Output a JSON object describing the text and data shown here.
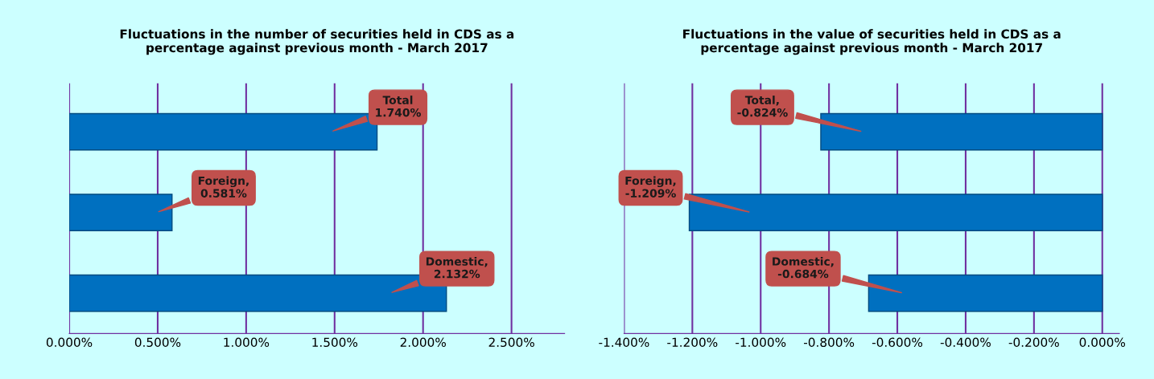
{
  "chart_data": [
    {
      "type": "bar",
      "orientation": "horizontal",
      "title": "Fluctuations in the number of securities held in CDS as a percentage against previous month - March 2017",
      "categories": [
        null,
        null,
        null
      ],
      "series": [
        {
          "color": "#0070c0",
          "values": [
            1.74,
            0.581,
            2.132
          ],
          "value_labels": [
            "Total\n1.740%",
            "Foreign,\n0.581%",
            "Domestic,\n2.132%"
          ]
        }
      ],
      "xlim": [
        0,
        2.8
      ],
      "xticks": [
        {
          "value": 0,
          "label": "0.000%"
        },
        {
          "value": 0.5,
          "label": "0.500%"
        },
        {
          "value": 1.0,
          "label": "1.000%"
        },
        {
          "value": 1.5,
          "label": "1.500%"
        },
        {
          "value": 2.0,
          "label": "2.000%"
        },
        {
          "value": 2.5,
          "label": "2.500%"
        }
      ],
      "grid": "x",
      "legend": false
    },
    {
      "type": "bar",
      "orientation": "horizontal",
      "title": "Fluctuations in the value of securities held in CDS as a percentage against previous month - March 2017",
      "categories": [
        null,
        null,
        null
      ],
      "series": [
        {
          "color": "#0070c0",
          "values": [
            -0.824,
            -1.209,
            -0.684
          ],
          "value_labels": [
            "Total,\n-0.824%",
            "Foreign,\n-1.209%",
            "Domestic,\n-0.684%"
          ]
        }
      ],
      "xlim": [
        -1.4,
        0.05
      ],
      "xticks": [
        {
          "value": -1.4,
          "label": "-1.400%"
        },
        {
          "value": -1.2,
          "label": "-1.200%"
        },
        {
          "value": -1.0,
          "label": "-1.000%"
        },
        {
          "value": -0.8,
          "label": "-0.800%"
        },
        {
          "value": -0.6,
          "label": "-0.600%"
        },
        {
          "value": -0.4,
          "label": "-0.400%"
        },
        {
          "value": -0.2,
          "label": "-0.200%"
        },
        {
          "value": 0,
          "label": "0.000%"
        }
      ],
      "grid": "x",
      "legend": false
    }
  ]
}
